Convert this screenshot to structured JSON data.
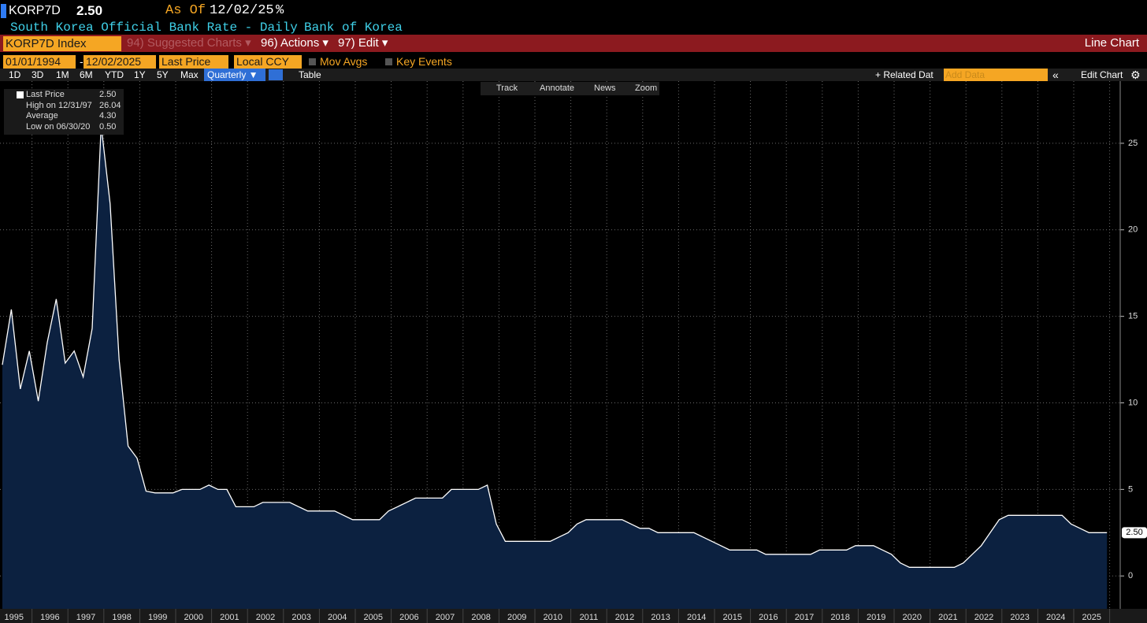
{
  "ui": {
    "ticker": "KORP7D",
    "price": "2.50",
    "as_of_label": "As Of",
    "as_of_date": "12/02/25",
    "unit": "%",
    "description": "South Korea Official Bank Rate - Daily",
    "source": "Bank of Korea",
    "security": "KORP7D Index",
    "menu": [
      "94) Suggested Charts ▾",
      "96) Actions ▾",
      "97) Edit ▾"
    ],
    "chart_type": "Line Chart",
    "start_date": "01/01/1994",
    "date_sep": "-",
    "end_date": "12/02/2025",
    "field": "Last Price",
    "currency": "Local CCY",
    "options": [
      "Mov Avgs",
      "Key Events"
    ],
    "periods": [
      "1D",
      "3D",
      "1M",
      "6M",
      "YTD",
      "1Y",
      "5Y",
      "Max"
    ],
    "frequency": "Quarterly ▼",
    "table": "Table",
    "related": "+ Related Dat",
    "add_data": "Add Data",
    "collapse": "«",
    "edit_chart": "Edit Chart",
    "tools": [
      "Track",
      "Annotate",
      "News",
      "Zoom"
    ],
    "legend": [
      [
        "Last Price",
        "2.50"
      ],
      [
        "High on 12/31/97",
        "26.04"
      ],
      [
        "Average",
        "4.30"
      ],
      [
        "Low on 06/30/20",
        "0.50"
      ]
    ],
    "price_tag": "2.50"
  },
  "chart_data": {
    "type": "line",
    "categories": [
      "1995",
      null,
      null,
      null,
      "1996",
      null,
      null,
      null,
      "1997",
      null,
      null,
      null,
      "1998",
      null,
      null,
      null,
      "1999",
      null,
      null,
      null,
      "2000",
      null,
      null,
      null,
      "2001",
      null,
      null,
      null,
      "2002",
      null,
      null,
      null,
      "2003",
      null,
      null,
      null,
      "2004",
      null,
      null,
      null,
      "2005",
      null,
      null,
      null,
      "2006",
      null,
      null,
      null,
      "2007",
      null,
      null,
      null,
      "2008",
      null,
      null,
      null,
      "2009",
      null,
      null,
      null,
      "2010",
      null,
      null,
      null,
      "2011",
      null,
      null,
      null,
      "2012",
      null,
      null,
      null,
      "2013",
      null,
      null,
      null,
      "2014",
      null,
      null,
      null,
      "2015",
      null,
      null,
      null,
      "2016",
      null,
      null,
      null,
      "2017",
      null,
      null,
      null,
      "2018",
      null,
      null,
      null,
      "2019",
      null,
      null,
      null,
      "2020",
      null,
      null,
      null,
      "2021",
      null,
      null,
      null,
      "2022",
      null,
      null,
      null,
      "2023",
      null,
      null,
      null,
      "2024",
      null,
      null,
      null,
      "2025",
      null,
      null,
      null
    ],
    "series": [
      {
        "name": "Last Price",
        "color": "#ffffff",
        "values": [
          12.2,
          15.4,
          10.8,
          13.0,
          10.1,
          13.5,
          16.0,
          12.3,
          13.0,
          11.5,
          14.3,
          26.04,
          21.5,
          12.5,
          7.5,
          6.8,
          4.9,
          4.8,
          4.8,
          4.8,
          5.0,
          5.0,
          5.0,
          5.25,
          5.0,
          5.0,
          4.0,
          4.0,
          4.0,
          4.25,
          4.25,
          4.25,
          4.25,
          4.0,
          3.75,
          3.75,
          3.75,
          3.75,
          3.5,
          3.25,
          3.25,
          3.25,
          3.25,
          3.75,
          4.0,
          4.25,
          4.5,
          4.5,
          4.5,
          4.5,
          5.0,
          5.0,
          5.0,
          5.0,
          5.25,
          3.0,
          2.0,
          2.0,
          2.0,
          2.0,
          2.0,
          2.0,
          2.25,
          2.5,
          3.0,
          3.25,
          3.25,
          3.25,
          3.25,
          3.25,
          3.0,
          2.75,
          2.75,
          2.5,
          2.5,
          2.5,
          2.5,
          2.5,
          2.25,
          2.0,
          1.75,
          1.5,
          1.5,
          1.5,
          1.5,
          1.25,
          1.25,
          1.25,
          1.25,
          1.25,
          1.25,
          1.5,
          1.5,
          1.5,
          1.5,
          1.75,
          1.75,
          1.75,
          1.5,
          1.25,
          0.75,
          0.5,
          0.5,
          0.5,
          0.5,
          0.5,
          0.5,
          0.75,
          1.25,
          1.75,
          2.5,
          3.25,
          3.5,
          3.5,
          3.5,
          3.5,
          3.5,
          3.5,
          3.5,
          3.0,
          2.75,
          2.5,
          2.5,
          2.5
        ]
      }
    ],
    "fill": "#0c2140",
    "ylim": [
      -1.9,
      28.5
    ],
    "yticks": [
      0,
      5,
      10,
      15,
      20,
      25
    ],
    "grid": true
  }
}
